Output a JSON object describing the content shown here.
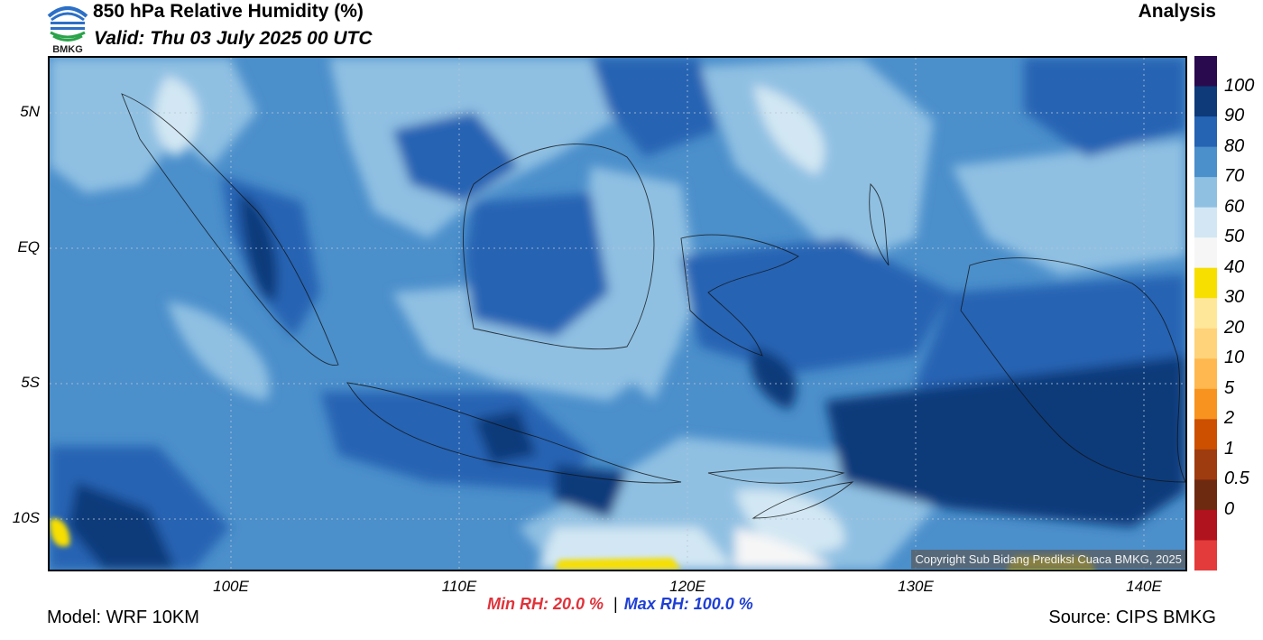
{
  "header": {
    "logo_text": "BMKG",
    "title": "850 hPa Relative Humidity (%)",
    "valid": "Valid: Thu 03 July 2025 00 UTC",
    "product": "Analysis"
  },
  "map": {
    "lat_labels": [
      "5N",
      "EQ",
      "5S",
      "10S"
    ],
    "lon_labels": [
      "100E",
      "110E",
      "120E",
      "130E",
      "140E"
    ],
    "copyright": "Copyright Sub Bidang Prediksi Cuaca BMKG, 2025"
  },
  "colorbar": {
    "labels": [
      "100",
      "90",
      "80",
      "70",
      "60",
      "50",
      "40",
      "30",
      "20",
      "10",
      "5",
      "2",
      "1",
      "0.5",
      "0"
    ],
    "colors": [
      "#2a0a4e",
      "#0e3a7a",
      "#2563b3",
      "#4b8fcb",
      "#8fc0e2",
      "#d2e7f3",
      "#f6f6f6",
      "#f7df00",
      "#ffe79a",
      "#ffd37a",
      "#ffb84f",
      "#f7931e",
      "#cc5000",
      "#9e3b0f",
      "#6e2a10",
      "#b0121e",
      "#e33b3b"
    ]
  },
  "footer": {
    "min_rh": "Min RH:  20.0 %",
    "separator": "|",
    "max_rh": "Max RH: 100.0 %",
    "model": "Model: WRF 10KM",
    "source": "Source: CIPS BMKG"
  },
  "colors": {
    "min_rh": "#e0323a",
    "max_rh": "#1f3fd6"
  }
}
